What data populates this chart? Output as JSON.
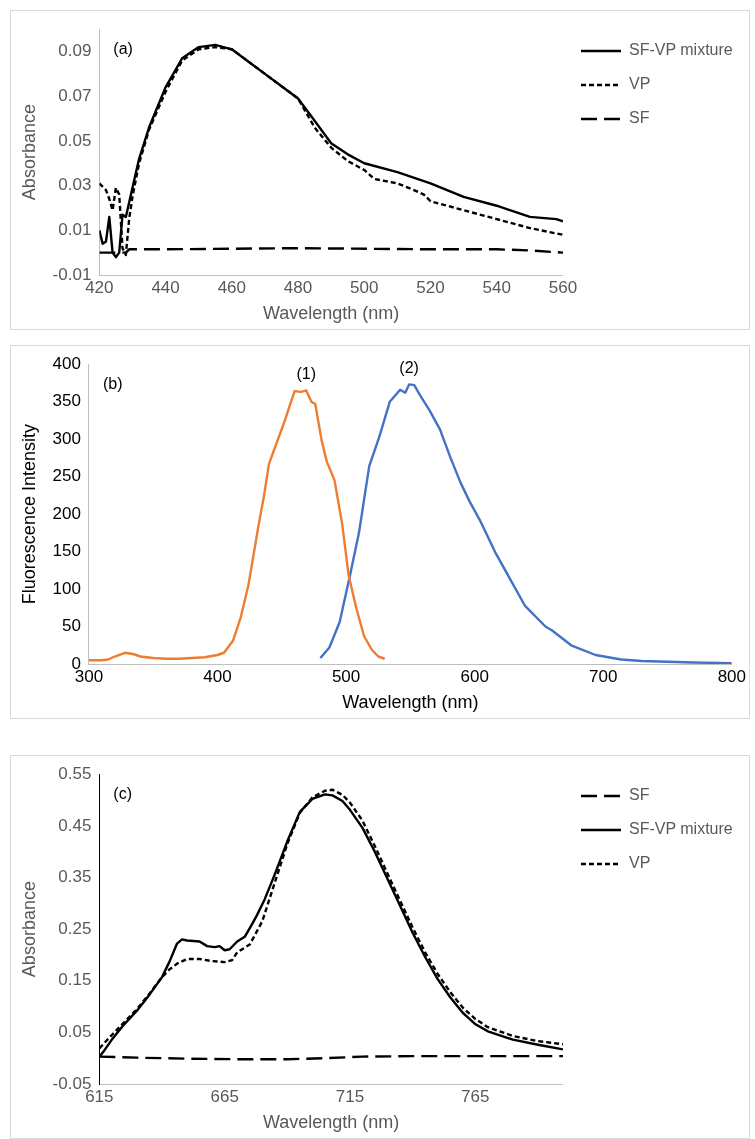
{
  "chart_data": [
    {
      "type": "line",
      "xlabel": "Wavelength (nm)",
      "ylabel": "Absorbance",
      "xlim": [
        420,
        560
      ],
      "xticks": [
        420,
        440,
        460,
        480,
        500,
        520,
        540,
        560
      ],
      "ylim": [
        -0.01,
        0.1
      ],
      "yticks": [
        -0.01,
        0.01,
        0.03,
        0.05,
        0.07,
        0.09
      ],
      "grid": false,
      "legend": "top right",
      "marker": "none",
      "annotations": [
        "(a)"
      ],
      "series": [
        {
          "name": "SF-VP mixture",
          "color": "#000000",
          "line_style": "solid",
          "x": [
            420,
            421,
            422,
            423,
            424,
            425,
            426,
            427,
            428,
            430,
            432,
            435,
            440,
            445,
            450,
            455,
            460,
            470,
            480,
            485,
            490,
            495,
            500,
            510,
            520,
            530,
            540,
            550,
            558,
            560
          ],
          "values": [
            0.01,
            0.004,
            0.005,
            0.016,
            0.0,
            -0.002,
            0.0,
            0.017,
            0.016,
            0.029,
            0.042,
            0.056,
            0.074,
            0.087,
            0.092,
            0.093,
            0.091,
            0.08,
            0.069,
            0.059,
            0.049,
            0.044,
            0.04,
            0.036,
            0.031,
            0.025,
            0.021,
            0.016,
            0.015,
            0.014
          ]
        },
        {
          "name": "VP",
          "color": "#000000",
          "line_style": "dotted",
          "x": [
            420,
            422,
            423,
            424,
            425,
            426,
            427,
            428,
            429,
            430,
            432,
            435,
            440,
            445,
            450,
            455,
            460,
            470,
            480,
            485,
            490,
            495,
            500,
            503,
            510,
            515,
            518,
            520,
            530,
            540,
            550,
            560
          ],
          "values": [
            0.031,
            0.028,
            0.024,
            0.019,
            0.029,
            0.026,
            0.002,
            -0.001,
            0.015,
            0.025,
            0.04,
            0.055,
            0.072,
            0.086,
            0.091,
            0.092,
            0.091,
            0.08,
            0.069,
            0.056,
            0.047,
            0.041,
            0.037,
            0.033,
            0.031,
            0.028,
            0.026,
            0.023,
            0.019,
            0.015,
            0.011,
            0.008
          ]
        },
        {
          "name": "SF",
          "color": "#000000",
          "line_style": "dashed",
          "x": [
            420,
            428,
            429,
            440,
            480,
            520,
            540,
            550,
            560
          ],
          "values": [
            0.0,
            0.0,
            0.0015,
            0.0015,
            0.002,
            0.0015,
            0.0015,
            0.001,
            0.0
          ]
        }
      ]
    },
    {
      "type": "line",
      "xlabel": "Wavelength (nm)",
      "ylabel": "Fluorescence Intensity",
      "xlim": [
        300,
        800
      ],
      "xticks": [
        300,
        400,
        500,
        600,
        700,
        800
      ],
      "ylim": [
        0,
        400
      ],
      "yticks": [
        0,
        50,
        100,
        150,
        200,
        250,
        300,
        350,
        400
      ],
      "grid": false,
      "marker": "none",
      "annotations": [
        "(b)",
        "(1)",
        "(2)"
      ],
      "series": [
        {
          "color": "#ed7d31",
          "x": [
            300,
            310,
            315,
            320,
            328,
            335,
            340,
            350,
            360,
            370,
            380,
            390,
            400,
            405,
            412,
            418,
            424,
            432,
            436,
            440,
            446,
            452,
            456,
            460,
            465,
            469,
            473,
            476,
            481,
            485,
            491,
            497,
            502,
            508,
            514,
            520,
            525,
            530
          ],
          "values": [
            5,
            5,
            6,
            10,
            15,
            13,
            10,
            8,
            7,
            7,
            8,
            9,
            12,
            15,
            31,
            62,
            105,
            186,
            223,
            267,
            295,
            323,
            344,
            364,
            363,
            365,
            350,
            347,
            298,
            270,
            245,
            186,
            118,
            74,
            37,
            19,
            10,
            7
          ]
        },
        {
          "color": "#4472c4",
          "x": [
            480,
            487,
            495,
            503,
            510,
            518,
            526,
            534,
            542,
            546,
            549,
            553,
            557,
            565,
            573,
            581,
            589,
            596,
            604,
            616,
            628,
            639,
            655,
            660,
            675,
            694,
            714,
            730,
            750,
            770,
            800
          ],
          "values": [
            8,
            22,
            56,
            118,
            175,
            264,
            304,
            350,
            366,
            362,
            373,
            372,
            360,
            338,
            313,
            276,
            242,
            217,
            192,
            149,
            112,
            78,
            50,
            45,
            25,
            12,
            6,
            4,
            3,
            2,
            1
          ]
        }
      ]
    },
    {
      "type": "line",
      "xlabel": "Wavelength (nm)",
      "ylabel": "Absorbance",
      "xlim": [
        615,
        800
      ],
      "xticks": [
        615,
        665,
        715,
        765
      ],
      "ylim": [
        -0.05,
        0.55
      ],
      "yticks": [
        -0.05,
        0.05,
        0.15,
        0.25,
        0.35,
        0.45,
        0.55
      ],
      "grid": false,
      "legend": "top right",
      "marker": "none",
      "annotations": [
        "(c)"
      ],
      "series": [
        {
          "name": "SF",
          "color": "#000000",
          "line_style": "dashed",
          "x": [
            615,
            630,
            650,
            670,
            690,
            705,
            720,
            740,
            800
          ],
          "values": [
            0.003,
            0.001,
            -0.001,
            -0.002,
            -0.002,
            0.0,
            0.003,
            0.004,
            0.004
          ]
        },
        {
          "name": "SF-VP mixture",
          "color": "#000000",
          "line_style": "solid",
          "x": [
            615,
            617,
            620,
            625,
            630,
            635,
            640,
            643,
            646,
            648,
            650,
            655,
            658,
            661,
            663,
            665,
            667,
            670,
            673,
            676,
            678,
            681,
            685,
            690,
            695,
            700,
            705,
            708,
            712,
            715,
            720,
            725,
            730,
            735,
            740,
            745,
            750,
            755,
            760,
            765,
            770,
            780,
            790,
            800
          ],
          "values": [
            0.003,
            0.015,
            0.036,
            0.066,
            0.092,
            0.123,
            0.157,
            0.187,
            0.222,
            0.23,
            0.228,
            0.226,
            0.217,
            0.215,
            0.217,
            0.209,
            0.211,
            0.226,
            0.235,
            0.26,
            0.278,
            0.308,
            0.356,
            0.42,
            0.477,
            0.502,
            0.511,
            0.509,
            0.498,
            0.481,
            0.446,
            0.399,
            0.347,
            0.295,
            0.243,
            0.196,
            0.153,
            0.118,
            0.088,
            0.066,
            0.052,
            0.036,
            0.026,
            0.017
          ]
        },
        {
          "name": "VP",
          "color": "#000000",
          "line_style": "dotted",
          "x": [
            615,
            620,
            625,
            630,
            635,
            640,
            643,
            646,
            650,
            655,
            660,
            665,
            668,
            670,
            675,
            680,
            685,
            690,
            695,
            700,
            705,
            708,
            712,
            715,
            720,
            725,
            730,
            735,
            740,
            745,
            750,
            755,
            760,
            765,
            770,
            780,
            790,
            800
          ],
          "values": [
            0.019,
            0.045,
            0.07,
            0.095,
            0.125,
            0.157,
            0.172,
            0.183,
            0.192,
            0.192,
            0.188,
            0.186,
            0.19,
            0.205,
            0.22,
            0.265,
            0.34,
            0.415,
            0.475,
            0.505,
            0.518,
            0.52,
            0.51,
            0.495,
            0.46,
            0.41,
            0.357,
            0.305,
            0.253,
            0.205,
            0.163,
            0.128,
            0.098,
            0.076,
            0.06,
            0.043,
            0.033,
            0.027
          ]
        }
      ]
    }
  ]
}
